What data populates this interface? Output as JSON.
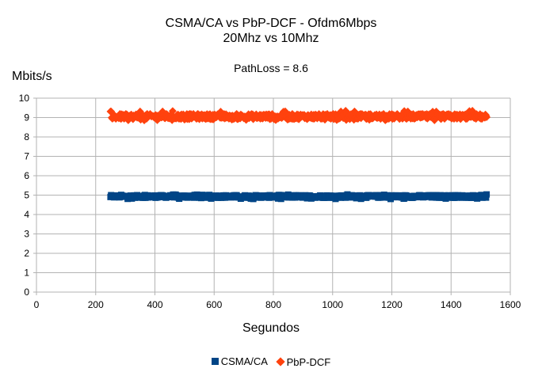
{
  "chart_data": {
    "type": "scatter",
    "title": "CSMA/CA vs PbP-DCF - Ofdm6Mbps",
    "title_line2": "20Mhz vs 10Mhz",
    "subtitle": "PathLoss = 8.6",
    "xlabel": "Segundos",
    "ylabel": "Mbits/s",
    "xlim": [
      0,
      1600
    ],
    "ylim": [
      0,
      10
    ],
    "xticks": [
      "0",
      "200",
      "400",
      "600",
      "800",
      "1000",
      "1200",
      "1400",
      "1600"
    ],
    "yticks": [
      "0",
      "1",
      "2",
      "3",
      "4",
      "5",
      "6",
      "7",
      "8",
      "9",
      "10"
    ],
    "grid": true,
    "legend_position": "bottom",
    "x_range_of_points": [
      250,
      1520
    ],
    "series": [
      {
        "name": "CSMA/CA",
        "color": "#004586",
        "marker": "square",
        "mean": 4.93,
        "min": 4.8,
        "max": 5.05
      },
      {
        "name": "PbP-DCF",
        "color": "#ff420e",
        "marker": "diamond",
        "mean": 9.05,
        "min": 8.85,
        "max": 9.35
      }
    ]
  }
}
